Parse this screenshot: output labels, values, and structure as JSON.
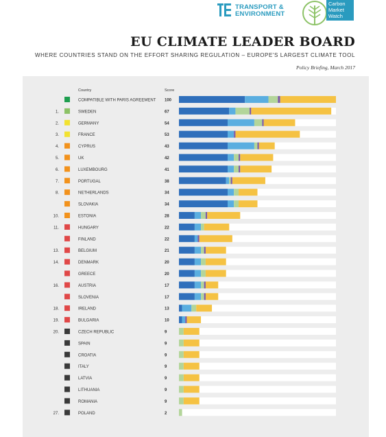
{
  "header": {
    "te_logo_text_line1": "TRANSPORT &",
    "te_logo_text_line2": "ENVIRONMENT",
    "cmw_logo_lines": [
      "Carbon",
      "Market",
      "Watch"
    ],
    "title": "EU CLIMATE LEADER BOARD",
    "subtitle": "WHERE COUNTRIES STAND ON THE EFFORT SHARING REGULATION – EUROPE'S LARGEST CLIMATE TOOL",
    "brief": "Policy Briefing, March 2017"
  },
  "colors": {
    "dark_green": "#1e9e4f",
    "light_green": "#8cc266",
    "yellow": "#f2e230",
    "orange": "#f2921c",
    "red": "#e04848",
    "dark_gray": "#3a3a3a",
    "seg_dark_blue": "#2f6fbb",
    "seg_light_blue": "#5aaee0",
    "seg_green": "#b3d59a",
    "seg_purple": "#7a5aa8",
    "seg_yellow": "#f5c243",
    "track": "#ffffff"
  },
  "chart_data": {
    "type": "bar",
    "column_headers": {
      "country": "Country",
      "score": "Score"
    },
    "xlim": [
      0,
      100
    ],
    "series": [
      {
        "color": "seg_dark_blue"
      },
      {
        "color": "seg_light_blue"
      },
      {
        "color": "seg_green"
      },
      {
        "color": "seg_purple"
      },
      {
        "color": "seg_yellow"
      }
    ],
    "rows": [
      {
        "rank": "",
        "country": "COMPATIBLE WITH PARIS AGREEMENT",
        "score": "100",
        "status": "dark_green",
        "segments": [
          42,
          15,
          6,
          1.5,
          35.5
        ]
      },
      {
        "rank": "1.",
        "country": "SWEDEN",
        "score": "67",
        "status": "light_green",
        "segments": [
          32,
          4,
          9,
          1,
          51
        ]
      },
      {
        "rank": "2.",
        "country": "GERMANY",
        "score": "54",
        "status": "yellow",
        "segments": [
          31,
          17,
          5,
          1,
          20
        ]
      },
      {
        "rank": "3.",
        "country": "FRANCE",
        "score": "53",
        "status": "yellow",
        "segments": [
          31,
          4,
          0,
          1,
          41
        ]
      },
      {
        "rank": "4.",
        "country": "CYPRUS",
        "score": "43",
        "status": "orange",
        "segments": [
          31,
          17,
          2,
          1,
          10
        ]
      },
      {
        "rank": "5.",
        "country": "UK",
        "score": "42",
        "status": "orange",
        "segments": [
          31,
          4,
          3,
          1,
          21
        ]
      },
      {
        "rank": "6.",
        "country": "LUXEMBOURG",
        "score": "41",
        "status": "orange",
        "segments": [
          31,
          4,
          3,
          1,
          20
        ]
      },
      {
        "rank": "7.",
        "country": "PORTUGAL",
        "score": "38",
        "status": "orange",
        "segments": [
          30,
          2,
          1,
          1,
          21
        ]
      },
      {
        "rank": "8.",
        "country": "NETHERLANDS",
        "score": "34",
        "status": "orange",
        "segments": [
          31,
          4,
          3,
          0,
          12
        ]
      },
      {
        "rank": "",
        "country": "SLOVAKIA",
        "score": "34",
        "status": "orange",
        "segments": [
          31,
          4,
          3,
          0,
          12
        ]
      },
      {
        "rank": "10.",
        "country": "ESTONIA",
        "score": "28",
        "status": "orange",
        "segments": [
          10,
          4,
          3,
          1,
          21
        ]
      },
      {
        "rank": "11.",
        "country": "HUNGARY",
        "score": "22",
        "status": "red",
        "segments": [
          10,
          4,
          2,
          0,
          16
        ]
      },
      {
        "rank": "",
        "country": "FINLAND",
        "score": "22",
        "status": "red",
        "segments": [
          10,
          2,
          0,
          1,
          21
        ]
      },
      {
        "rank": "13.",
        "country": "BELGIUM",
        "score": "21",
        "status": "red",
        "segments": [
          10,
          4,
          2,
          1,
          13
        ]
      },
      {
        "rank": "14.",
        "country": "DENMARK",
        "score": "20",
        "status": "red",
        "segments": [
          10,
          4,
          3,
          0,
          13
        ]
      },
      {
        "rank": "",
        "country": "GREECE",
        "score": "20",
        "status": "red",
        "segments": [
          10,
          4,
          3,
          0,
          13
        ]
      },
      {
        "rank": "16.",
        "country": "AUSTRIA",
        "score": "17",
        "status": "red",
        "segments": [
          10,
          4,
          2,
          1,
          8
        ]
      },
      {
        "rank": "",
        "country": "SLOVENIA",
        "score": "17",
        "status": "red",
        "segments": [
          10,
          4,
          2,
          1,
          8
        ]
      },
      {
        "rank": "18.",
        "country": "IRELAND",
        "score": "13",
        "status": "red",
        "segments": [
          2,
          6,
          3,
          0,
          10
        ]
      },
      {
        "rank": "19.",
        "country": "BULGARIA",
        "score": "10",
        "status": "red",
        "segments": [
          2,
          2,
          0,
          1,
          9
        ]
      },
      {
        "rank": "20.",
        "country": "CZECH REPUBLIC",
        "score": "9",
        "status": "dark_gray",
        "segments": [
          0,
          0,
          3,
          0,
          10
        ]
      },
      {
        "rank": "",
        "country": "SPAIN",
        "score": "9",
        "status": "dark_gray",
        "segments": [
          0,
          0,
          3,
          0,
          10
        ]
      },
      {
        "rank": "",
        "country": "CROATIA",
        "score": "9",
        "status": "dark_gray",
        "segments": [
          0,
          0,
          3,
          0,
          10
        ]
      },
      {
        "rank": "",
        "country": "ITALY",
        "score": "9",
        "status": "dark_gray",
        "segments": [
          0,
          0,
          3,
          0,
          10
        ]
      },
      {
        "rank": "",
        "country": "LATVIA",
        "score": "9",
        "status": "dark_gray",
        "segments": [
          0,
          0,
          3,
          0,
          10
        ]
      },
      {
        "rank": "",
        "country": "LITHUANIA",
        "score": "9",
        "status": "dark_gray",
        "segments": [
          0,
          0,
          3,
          0,
          10
        ]
      },
      {
        "rank": "",
        "country": "ROMANIA",
        "score": "9",
        "status": "dark_gray",
        "segments": [
          0,
          0,
          3,
          0,
          10
        ]
      },
      {
        "rank": "27.",
        "country": "POLAND",
        "score": "2",
        "status": "dark_gray",
        "segments": [
          0,
          0,
          2,
          0,
          0
        ]
      }
    ]
  }
}
